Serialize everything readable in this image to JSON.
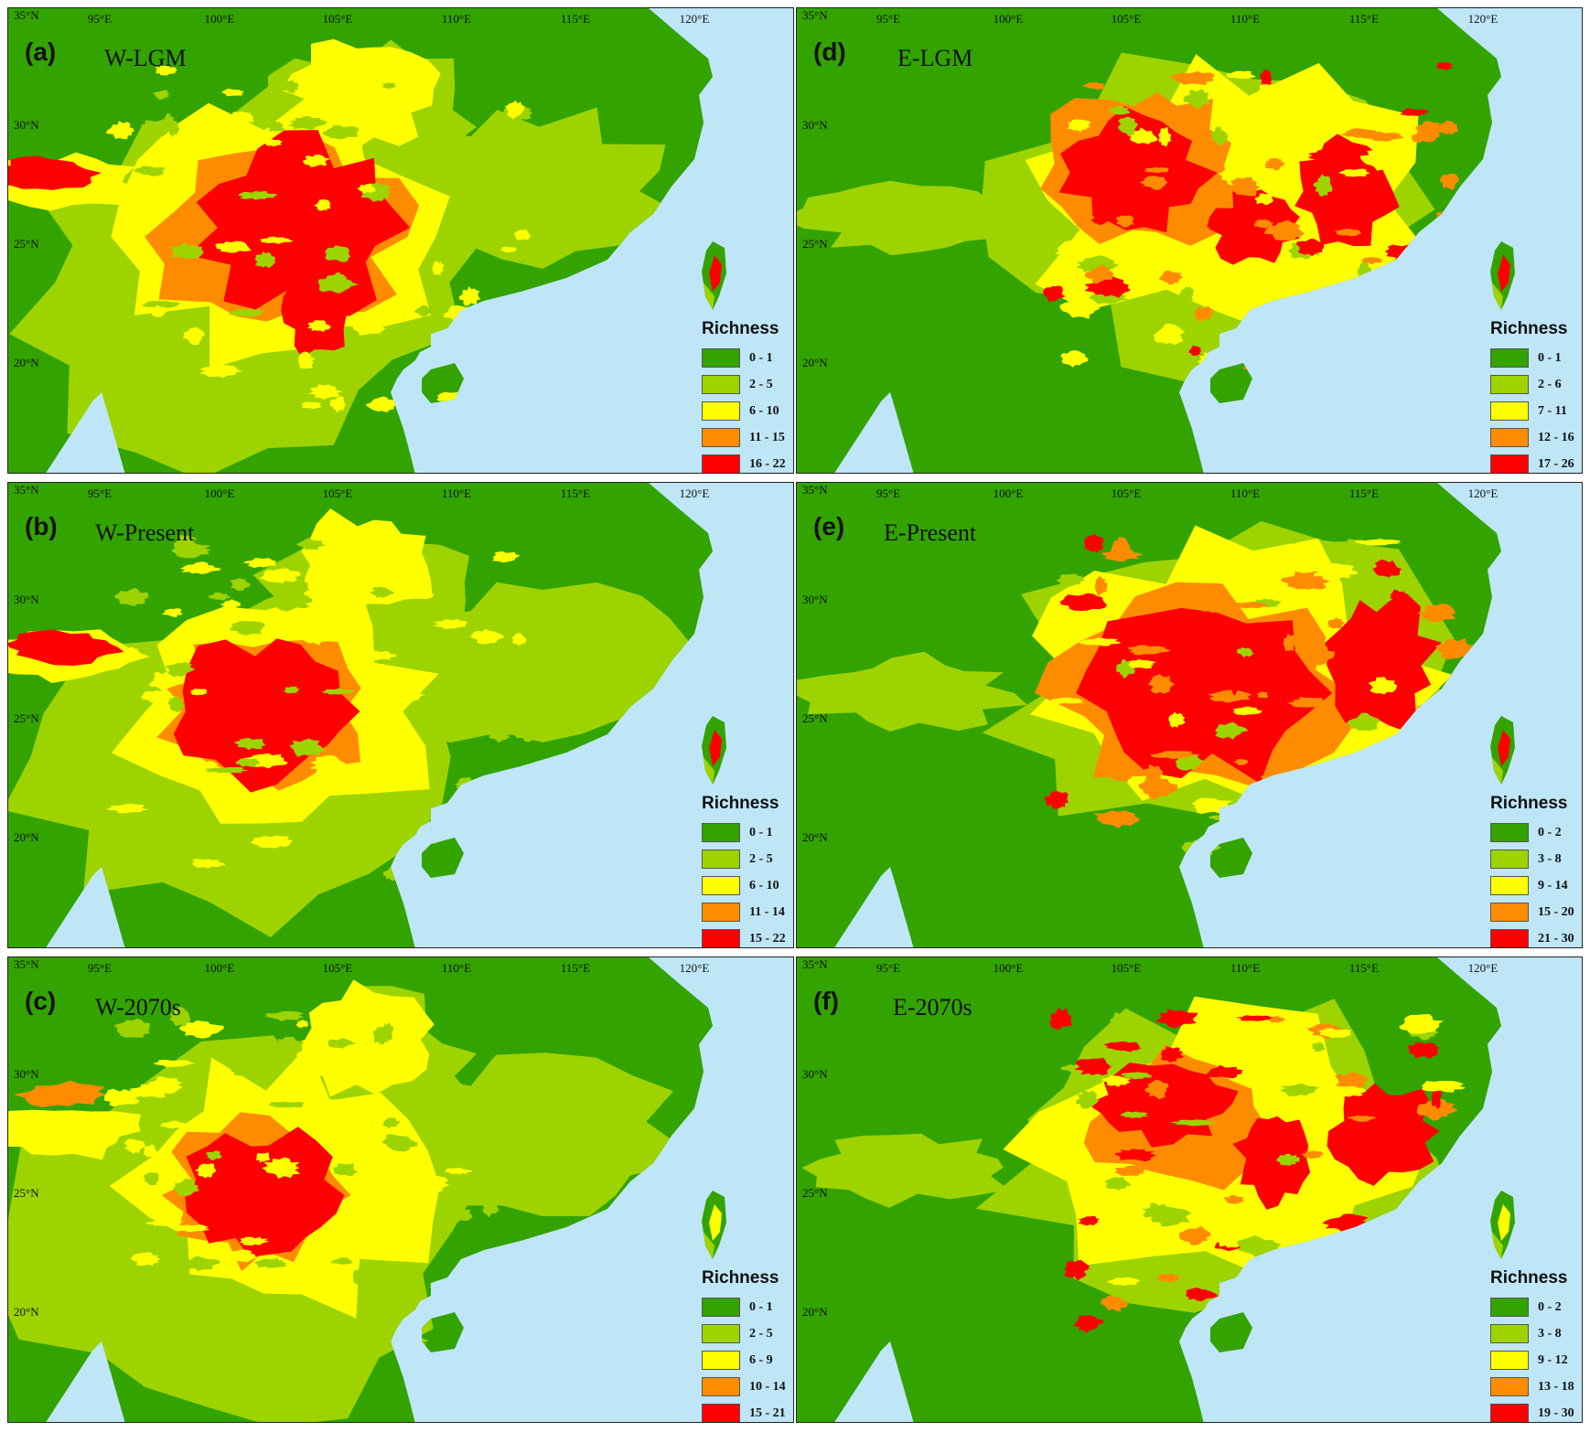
{
  "colors": {
    "sea": "#bfe6f7",
    "classes": [
      "#33a300",
      "#9dd400",
      "#ffff00",
      "#ff8c00",
      "#ff0000"
    ]
  },
  "lon_labels": [
    "95°E",
    "100°E",
    "105°E",
    "110°E",
    "115°E",
    "120°E"
  ],
  "lat_labels": [
    "35°N",
    "30°N",
    "25°N",
    "20°N"
  ],
  "legend_title": "Richness",
  "panels": [
    {
      "letter": "(a)",
      "title": "W-LGM",
      "ranges": [
        "0 - 1",
        "2 - 5",
        "6 - 10",
        "11 - 15",
        "16 - 22"
      ]
    },
    {
      "letter": "(b)",
      "title": "W-Present",
      "ranges": [
        "0 - 1",
        "2 - 5",
        "6 - 10",
        "11 - 14",
        "15 - 22"
      ]
    },
    {
      "letter": "(c)",
      "title": "W-2070s",
      "ranges": [
        "0 - 1",
        "2 - 5",
        "6 - 9",
        "10 - 14",
        "15 - 21"
      ]
    },
    {
      "letter": "(d)",
      "title": "E-LGM",
      "ranges": [
        "0 - 1",
        "2 - 6",
        "7 - 11",
        "12 - 16",
        "17 - 26"
      ]
    },
    {
      "letter": "(e)",
      "title": "E-Present",
      "ranges": [
        "0 - 2",
        "3 - 8",
        "9 - 14",
        "15 - 20",
        "21 - 30"
      ]
    },
    {
      "letter": "(f)",
      "title": "E-2070s",
      "ranges": [
        "0 - 2",
        "3 - 8",
        "9 - 12",
        "13 - 18",
        "19 - 30"
      ]
    }
  ]
}
